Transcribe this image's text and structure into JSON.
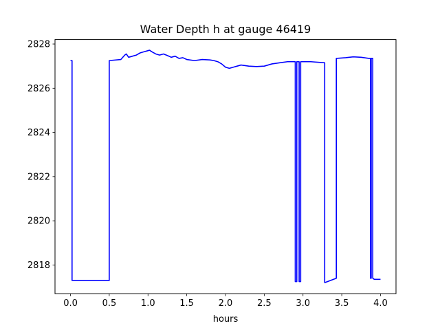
{
  "chart_data": {
    "type": "line",
    "title": "Water Depth h at gauge 46419",
    "xlabel": "hours",
    "ylabel": "",
    "xlim": [
      -0.2,
      4.2
    ],
    "ylim": [
      2816.7,
      2828.2
    ],
    "xticks": [
      0.0,
      0.5,
      1.0,
      1.5,
      2.0,
      2.5,
      3.0,
      3.5,
      4.0
    ],
    "xtick_labels": [
      "0.0",
      "0.5",
      "1.0",
      "1.5",
      "2.0",
      "2.5",
      "3.0",
      "3.5",
      "4.0"
    ],
    "yticks": [
      2818,
      2820,
      2822,
      2824,
      2826,
      2828
    ],
    "ytick_labels": [
      "2818",
      "2820",
      "2822",
      "2824",
      "2826",
      "2828"
    ],
    "grid": false,
    "series": [
      {
        "color": "#0000ff",
        "x": [
          0.0,
          0.02,
          0.02,
          0.5,
          0.5,
          0.65,
          0.7,
          0.72,
          0.75,
          0.8,
          0.85,
          0.9,
          0.95,
          1.0,
          1.02,
          1.05,
          1.1,
          1.15,
          1.2,
          1.25,
          1.3,
          1.35,
          1.4,
          1.45,
          1.5,
          1.6,
          1.7,
          1.8,
          1.85,
          1.9,
          1.95,
          2.0,
          2.05,
          2.1,
          2.15,
          2.2,
          2.3,
          2.4,
          2.5,
          2.6,
          2.7,
          2.8,
          2.9,
          2.9,
          2.92,
          2.92,
          2.95,
          2.95,
          2.97,
          2.97,
          3.1,
          3.28,
          3.28,
          3.43,
          3.43,
          3.55,
          3.65,
          3.75,
          3.85,
          3.87,
          3.87,
          3.88,
          3.88,
          3.9,
          3.9,
          3.92,
          4.0
        ],
        "y": [
          2827.25,
          2827.25,
          2817.3,
          2817.3,
          2827.25,
          2827.3,
          2827.5,
          2827.55,
          2827.4,
          2827.45,
          2827.5,
          2827.6,
          2827.65,
          2827.7,
          2827.72,
          2827.65,
          2827.55,
          2827.5,
          2827.55,
          2827.48,
          2827.4,
          2827.45,
          2827.35,
          2827.38,
          2827.3,
          2827.25,
          2827.3,
          2827.28,
          2827.25,
          2827.2,
          2827.1,
          2826.95,
          2826.9,
          2826.95,
          2827.0,
          2827.05,
          2827.0,
          2826.98,
          2827.0,
          2827.1,
          2827.15,
          2827.2,
          2827.2,
          2817.25,
          2817.25,
          2827.2,
          2827.2,
          2817.25,
          2817.25,
          2827.2,
          2827.2,
          2827.15,
          2817.2,
          2817.4,
          2827.35,
          2827.38,
          2827.42,
          2827.4,
          2827.35,
          2827.35,
          2817.4,
          2817.4,
          2827.35,
          2827.35,
          2817.4,
          2817.35,
          2817.35
        ]
      }
    ]
  }
}
